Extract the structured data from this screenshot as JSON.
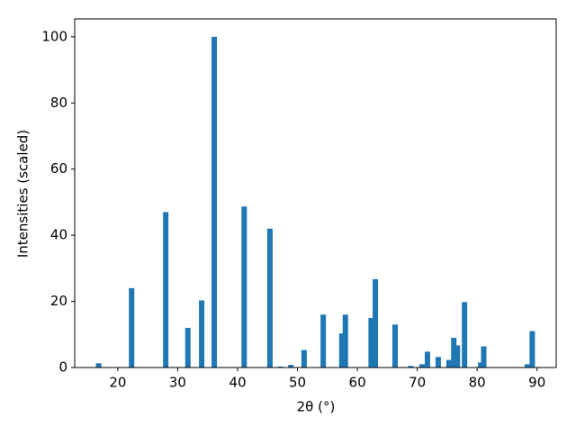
{
  "chart_data": {
    "type": "bar",
    "xlabel": "2θ (°)",
    "ylabel": "Intensities (scaled)",
    "x": [
      16.8,
      22.3,
      28.0,
      31.7,
      34.0,
      36.1,
      41.1,
      45.4,
      47.2,
      48.9,
      51.1,
      54.3,
      57.4,
      58.0,
      62.3,
      63.0,
      66.3,
      68.9,
      70.8,
      71.7,
      73.5,
      75.3,
      76.1,
      76.7,
      77.9,
      80.6,
      81.1,
      88.4,
      89.2
    ],
    "values": [
      1.3,
      24,
      47,
      12,
      20.3,
      100,
      48.7,
      42,
      0.3,
      0.8,
      5.3,
      16,
      10.3,
      16,
      15,
      26.7,
      13,
      0.5,
      1,
      4.8,
      3.2,
      2.3,
      9,
      6.7,
      19.8,
      1.5,
      6.4,
      1,
      11
    ],
    "color": "#1f77b4",
    "xlim": [
      12.8,
      93.2
    ],
    "xticks": [
      20,
      30,
      40,
      50,
      60,
      70,
      80,
      90
    ],
    "ylim": [
      0,
      105.4
    ],
    "yticks": [
      0,
      20,
      40,
      60,
      80,
      100
    ]
  }
}
